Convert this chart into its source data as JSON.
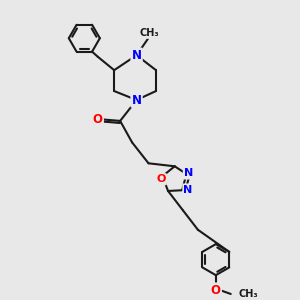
{
  "bg_color": "#e8e8e8",
  "bond_color": "#1a1a1a",
  "nitrogen_color": "#0000ff",
  "oxygen_color": "#ff0000",
  "line_width": 1.5,
  "figsize": [
    3.0,
    3.0
  ],
  "dpi": 100,
  "xlim": [
    0,
    10
  ],
  "ylim": [
    0,
    10
  ]
}
